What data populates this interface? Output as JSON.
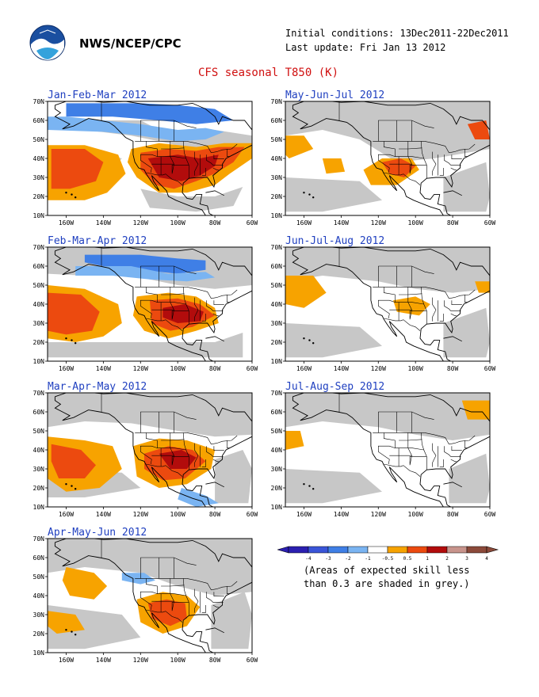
{
  "header": {
    "agency": "NWS/NCEP/CPC",
    "initial_conditions": "Initial conditions: 13Dec2011-22Dec2011",
    "last_update": "Last update: Fri Jan 13 2012",
    "title": "CFS seasonal T850 (K)"
  },
  "axes": {
    "lat_labels": [
      "70N",
      "60N",
      "50N",
      "40N",
      "30N",
      "20N",
      "10N"
    ],
    "lon_labels": [
      "160W",
      "140W",
      "120W",
      "100W",
      "80W",
      "60W"
    ]
  },
  "panels": [
    {
      "title": "Jan-Feb-Mar 2012",
      "anomaly_pattern": "Strong warm anomaly (1-3 K) over southern and central United States; warm (0.5-2 K) over eastern Pacific near Hawaii; cool (-0.5 to -2 K) over Alaska and Canada"
    },
    {
      "title": "Feb-Mar-Apr 2012",
      "anomaly_pattern": "Warm anomaly (1-3 K) over southern United States; warm over eastern Pacific; cool over Alaska and western Canada"
    },
    {
      "title": "Mar-Apr-May 2012",
      "anomaly_pattern": "Warm anomaly (1-3 K) over southern United States and Mexico; warm over eastern Pacific; cool near Central America"
    },
    {
      "title": "Apr-May-Jun 2012",
      "anomaly_pattern": "Warm anomaly (1-2 K) over southwestern United States and northern Mexico; weak warm over Pacific"
    },
    {
      "title": "May-Jun-Jul 2012",
      "anomaly_pattern": "Warm anomaly (1-2 K) over southwestern United States; warm over northeast Canada; mostly grey elsewhere"
    },
    {
      "title": "Jun-Jul-Aug 2012",
      "anomaly_pattern": "Weak warm anomaly (0.5-1 K) over central United States and northeastern Pacific; mostly grey elsewhere"
    },
    {
      "title": "Jul-Aug-Sep 2012",
      "anomaly_pattern": "Weak warm anomaly over northeastern Canada and northeastern Pacific; mostly grey elsewhere"
    }
  ],
  "colorbar": {
    "tick_labels": [
      "-4",
      "-3",
      "-2",
      "-1",
      "-0.5",
      "0.5",
      "1",
      "2",
      "3",
      "4"
    ],
    "colors": [
      "#2b1fb0",
      "#3a55d8",
      "#3f7fe6",
      "#7ab4f2",
      "#ffffff",
      "#f7a300",
      "#ec4a0f",
      "#b20c0c",
      "#c8948c",
      "#8c4a3a"
    ]
  },
  "colors": {
    "ocean_grey": "#c7c7c7",
    "warm_1": "#f7a300",
    "warm_2": "#ec4a0f",
    "warm_3": "#b20c0c",
    "cool_1": "#7ab4f2",
    "cool_2": "#3f7fe6",
    "title_red": "#d01010",
    "panel_title_blue": "#2040c0"
  },
  "note": {
    "line1": "(Areas of expected skill less",
    "line2": "than 0.3 are shaded in grey.)"
  }
}
